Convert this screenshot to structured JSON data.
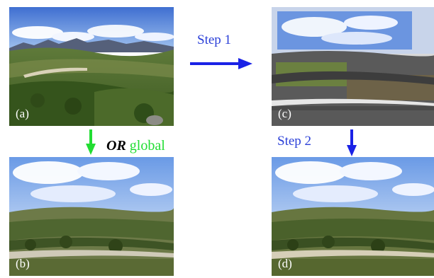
{
  "figure": {
    "panels": [
      {
        "id": "a",
        "label": "(a)"
      },
      {
        "id": "b",
        "label": "(b)"
      },
      {
        "id": "c",
        "label": "(c)"
      },
      {
        "id": "d",
        "label": "(d)"
      }
    ],
    "step1_label": "Step 1",
    "step2_label": "Step 2",
    "or_label": "OR",
    "global_label": "global",
    "colors": {
      "blue_arrow": "#1a22e6",
      "green_arrow": "#22dd33",
      "step_text": "#2a3fd8",
      "global_text": "#22dd33"
    }
  }
}
